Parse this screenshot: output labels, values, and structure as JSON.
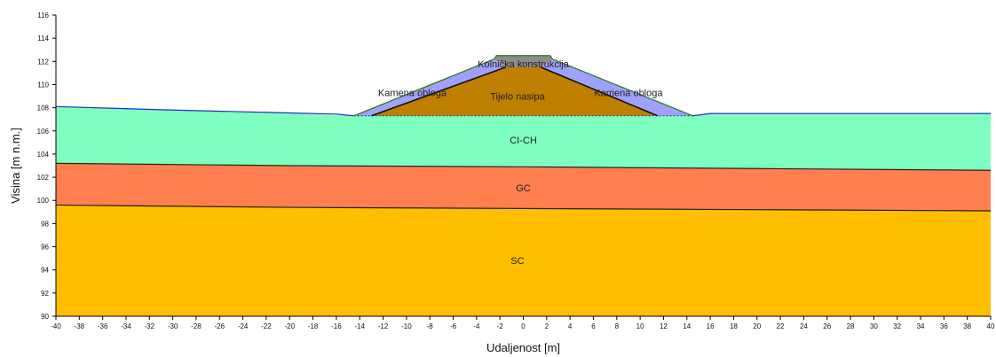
{
  "chart_data": {
    "type": "area",
    "xlabel": "Udaljenost [m]",
    "ylabel": "Visina [m n.m.]",
    "xlim": [
      -40,
      40
    ],
    "ylim": [
      90,
      116
    ],
    "x_ticks": [
      -40,
      -38,
      -36,
      -34,
      -32,
      -30,
      -28,
      -26,
      -24,
      -22,
      -20,
      -18,
      -16,
      -14,
      -12,
      -10,
      -8,
      -6,
      -4,
      -2,
      0,
      2,
      4,
      6,
      8,
      10,
      12,
      14,
      16,
      18,
      20,
      22,
      24,
      26,
      28,
      30,
      32,
      34,
      36,
      38,
      40
    ],
    "y_ticks": [
      90,
      92,
      94,
      96,
      98,
      100,
      102,
      104,
      106,
      108,
      110,
      112,
      114,
      116
    ],
    "layers": [
      {
        "name": "SC",
        "color": "#FFBF00",
        "polygon": [
          [
            -40,
            99.6
          ],
          [
            -20,
            99.4
          ],
          [
            0,
            99.3
          ],
          [
            20,
            99.2
          ],
          [
            40,
            99.1
          ],
          [
            40,
            90
          ],
          [
            -40,
            90
          ]
        ],
        "label_pos": [
          -0.5,
          94.8
        ]
      },
      {
        "name": "GC",
        "color": "#FF7F50",
        "polygon": [
          [
            -40,
            103.2
          ],
          [
            -20,
            103.0
          ],
          [
            0,
            102.9
          ],
          [
            20,
            102.75
          ],
          [
            40,
            102.6
          ],
          [
            40,
            99.1
          ],
          [
            20,
            99.2
          ],
          [
            0,
            99.3
          ],
          [
            -20,
            99.4
          ],
          [
            -40,
            99.6
          ]
        ],
        "label_pos": [
          0,
          101.1
        ]
      },
      {
        "name": "CI-CH",
        "color": "#7FFFBF",
        "polygon": [
          [
            -40,
            108.1
          ],
          [
            -30,
            107.8
          ],
          [
            -20,
            107.55
          ],
          [
            -14.5,
            107.3
          ],
          [
            14.5,
            107.3
          ],
          [
            16,
            107.5
          ],
          [
            40,
            107.5
          ],
          [
            40,
            102.6
          ],
          [
            20,
            102.75
          ],
          [
            0,
            102.9
          ],
          [
            -20,
            103.0
          ],
          [
            -40,
            103.2
          ]
        ],
        "label_pos": [
          0,
          105.2
        ]
      },
      {
        "name": "Kamena obloga",
        "color": "#A0A0FF",
        "polygon": [
          [
            -14.5,
            107.3
          ],
          [
            -2.5,
            112.2
          ],
          [
            -1.5,
            111.5
          ],
          [
            -13,
            107.3
          ]
        ],
        "label_pos": [
          -9.5,
          109.3
        ]
      },
      {
        "name": "Kamena obloga",
        "color": "#A0A0FF",
        "polygon": [
          [
            14.5,
            107.3
          ],
          [
            2.5,
            112.2
          ],
          [
            1.5,
            111.5
          ],
          [
            11.5,
            107.3
          ]
        ],
        "label_pos": [
          9,
          109.3
        ]
      },
      {
        "name": "Tijelo nasipa",
        "color": "#BF7F00",
        "polygon": [
          [
            -13,
            107.3
          ],
          [
            -1.5,
            111.5
          ],
          [
            1.5,
            111.5
          ],
          [
            11.5,
            107.3
          ]
        ],
        "label_pos": [
          -0.5,
          109.0
        ]
      },
      {
        "name": "Kolnička konstrukcija",
        "color": "#8C8C8C",
        "polygon": [
          [
            -2.5,
            112.2
          ],
          [
            -2.3,
            112.5
          ],
          [
            2.3,
            112.5
          ],
          [
            2.5,
            112.2
          ],
          [
            1.5,
            111.5
          ],
          [
            -1.5,
            111.5
          ]
        ],
        "label_pos": [
          0,
          111.8
        ]
      }
    ],
    "grid": false,
    "legend": "none"
  }
}
